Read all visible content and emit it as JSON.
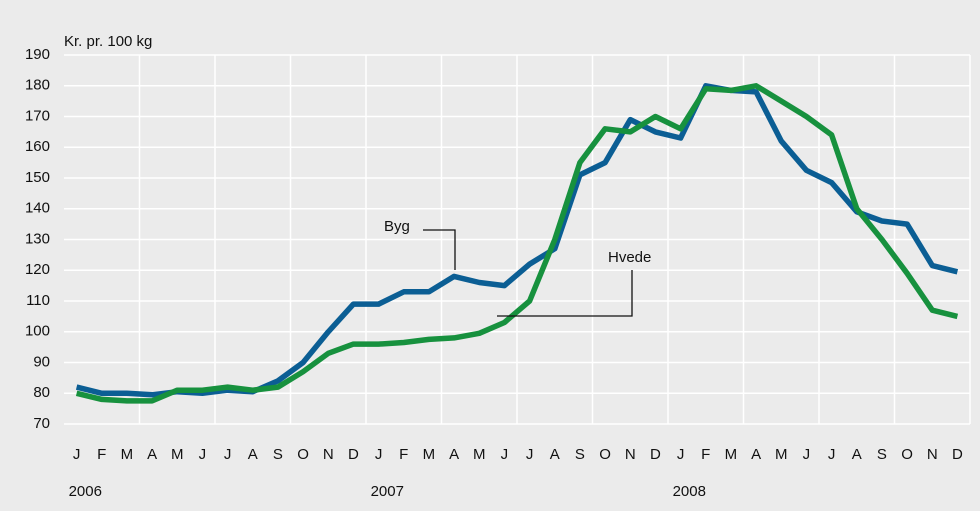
{
  "chart_data": {
    "type": "line",
    "y_label": "Kr. pr. 100 kg",
    "categories": [
      "J",
      "F",
      "M",
      "A",
      "M",
      "J",
      "J",
      "A",
      "S",
      "O",
      "N",
      "D",
      "J",
      "F",
      "M",
      "A",
      "M",
      "J",
      "J",
      "A",
      "S",
      "O",
      "N",
      "D",
      "J",
      "F",
      "M",
      "A",
      "M",
      "J",
      "J",
      "A",
      "S",
      "O",
      "N",
      "D"
    ],
    "year_labels": [
      "2006",
      "2007",
      "2008"
    ],
    "series": [
      {
        "name": "Byg",
        "color": "#0b5e94",
        "values": [
          82,
          80,
          80,
          79.5,
          80.5,
          80,
          81,
          80.5,
          84,
          90,
          100,
          109,
          109,
          113,
          113,
          118,
          116,
          115,
          122,
          127,
          151,
          155,
          169,
          165,
          163,
          180,
          178.5,
          178,
          162,
          152.5,
          148.5,
          139,
          136,
          135,
          121.5,
          119.5
        ]
      },
      {
        "name": "Hvede",
        "color": "#17913e",
        "values": [
          80,
          78,
          77.5,
          77.5,
          81,
          81,
          82,
          81,
          82,
          87,
          93,
          96,
          96,
          96.5,
          97.5,
          98,
          99.5,
          103,
          110,
          130,
          155,
          166,
          165,
          170,
          166,
          179,
          178.5,
          180,
          175,
          170,
          164,
          140,
          130,
          119,
          107,
          105
        ]
      }
    ],
    "ylim": [
      70,
      190
    ],
    "yticks": [
      70,
      80,
      90,
      100,
      110,
      120,
      130,
      140,
      150,
      160,
      170,
      180,
      190
    ],
    "grid": true
  }
}
